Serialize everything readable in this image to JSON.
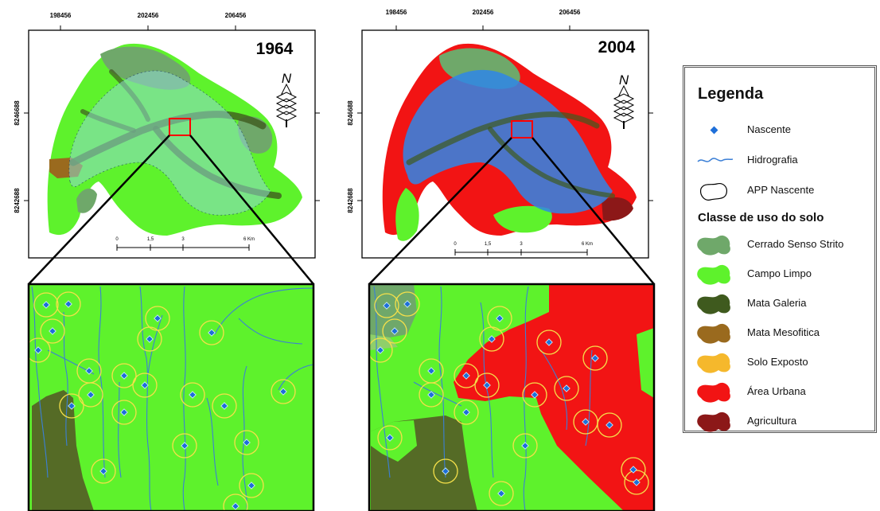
{
  "maps": [
    {
      "year": "1964",
      "x_ticks": [
        "198456",
        "202456",
        "206456"
      ],
      "y_ticks": [
        "8246688",
        "8242688"
      ],
      "north": "N",
      "scale": [
        "0",
        "1,5",
        "3",
        "6 Km"
      ]
    },
    {
      "year": "2004",
      "x_ticks": [
        "198456",
        "202456",
        "206456"
      ],
      "y_ticks": [
        "8246688",
        "8242688"
      ],
      "north": "N",
      "scale": [
        "0",
        "1,5",
        "3",
        "6 Km"
      ]
    }
  ],
  "legend": {
    "title": "Legenda",
    "items": [
      {
        "label": "Nascente",
        "icon": "point-icon",
        "color": "#1e6fd9"
      },
      {
        "label": "Hidrografia",
        "icon": "river-line-icon",
        "color": "#3b7fd6"
      },
      {
        "label": "APP Nascente",
        "icon": "buffer-outline-icon",
        "color": "#000000"
      }
    ],
    "class_title": "Classe de uso do solo",
    "classes": [
      {
        "label": "Cerrado Senso Strito",
        "color": "#6fa86a"
      },
      {
        "label": "Campo Limpo",
        "color": "#5ef22c"
      },
      {
        "label": "Mata Galeria",
        "color": "#3f5a1e"
      },
      {
        "label": "Mata Mesofitica",
        "color": "#9a6a1e"
      },
      {
        "label": "Solo Exposto",
        "color": "#f5b82c"
      },
      {
        "label": "Área Urbana",
        "color": "#f21414"
      },
      {
        "label": "Agricultura",
        "color": "#8c1818"
      }
    ]
  }
}
